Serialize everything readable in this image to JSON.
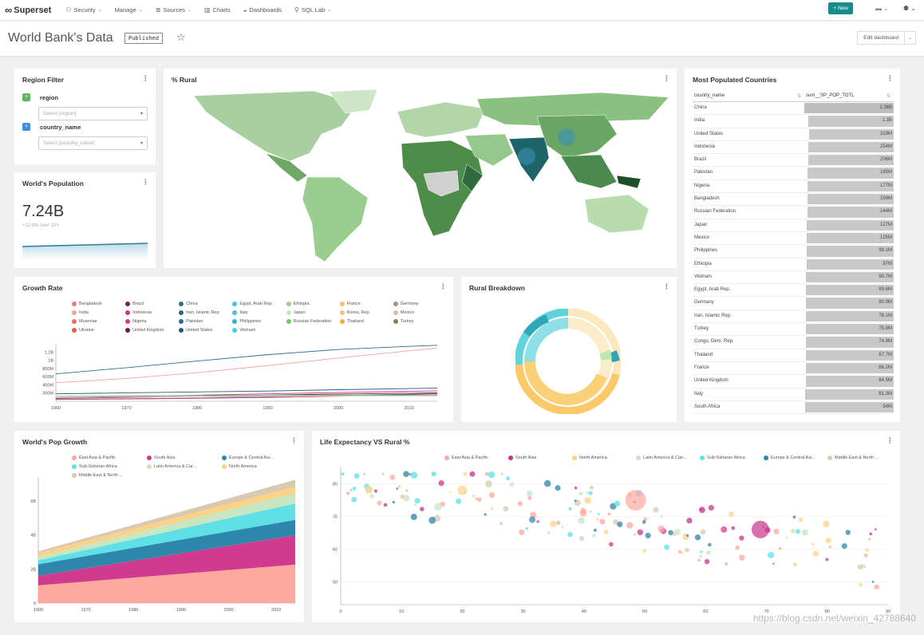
{
  "nav": {
    "brand": "Superset",
    "logo": "∞",
    "items": [
      {
        "label": "Security",
        "icon": "⚇",
        "caret": "⌄"
      },
      {
        "label": "Manage",
        "icon": "",
        "caret": "⌄"
      },
      {
        "label": "Sources",
        "icon": "≣",
        "caret": "⌄"
      },
      {
        "label": "Charts",
        "icon": "▥",
        "caret": ""
      },
      {
        "label": "Dashboards",
        "icon": "◒",
        "caret": ""
      },
      {
        "label": "SQL Lab",
        "icon": "⚲",
        "caret": "⌄"
      }
    ],
    "new_label": "+ New",
    "flag": "▬ ⌄",
    "user": "⚉ ⌄"
  },
  "header": {
    "title": "World Bank's Data",
    "badge": "Published",
    "star": "☆",
    "edit_label": "Edit dashboard",
    "edit_caret": "⌄"
  },
  "region_filter": {
    "title": "Region Filter",
    "menu": "⋮",
    "filters": [
      {
        "label": "region",
        "placeholder": "Select [region]",
        "check": "+"
      },
      {
        "label": "country_name",
        "placeholder": "Select [country_name]",
        "check": "+"
      }
    ],
    "arrow": "▾"
  },
  "worlds_population": {
    "title": "World's Population",
    "menu": "⋮",
    "value": "7.24B",
    "subtitle": "+12.9% over 10Y"
  },
  "rural_map": {
    "title": "% Rural",
    "menu": "⋮"
  },
  "most_populated": {
    "title": "Most Populated Countries",
    "menu": "⋮",
    "col1": "country_name",
    "col2": "sum__SP_POP_TOTL",
    "sort": "⇅",
    "rows": [
      {
        "name": "China",
        "value": "1.36B",
        "pct": 1.0
      },
      {
        "name": "India",
        "value": "1.3B",
        "pct": 0.955
      },
      {
        "name": "United States",
        "value": "319M",
        "pct": 0.95
      },
      {
        "name": "Indonesia",
        "value": "254M",
        "pct": 0.955
      },
      {
        "name": "Brazil",
        "value": "206M",
        "pct": 0.958
      },
      {
        "name": "Pakistan",
        "value": "185M",
        "pct": 0.96
      },
      {
        "name": "Nigeria",
        "value": "177M",
        "pct": 0.962
      },
      {
        "name": "Bangladesh",
        "value": "159M",
        "pct": 0.965
      },
      {
        "name": "Russian Federation",
        "value": "144M",
        "pct": 0.967
      },
      {
        "name": "Japan",
        "value": "127M",
        "pct": 0.97
      },
      {
        "name": "Mexico",
        "value": "125M",
        "pct": 0.972
      },
      {
        "name": "Philippines",
        "value": "99.1M",
        "pct": 0.975
      },
      {
        "name": "Ethiopia",
        "value": "97M",
        "pct": 0.976
      },
      {
        "name": "Vietnam",
        "value": "90.7M",
        "pct": 0.978
      },
      {
        "name": "Egypt, Arab Rep.",
        "value": "89.6M",
        "pct": 0.979
      },
      {
        "name": "Germany",
        "value": "80.9M",
        "pct": 0.98
      },
      {
        "name": "Iran, Islamic Rep.",
        "value": "78.1M",
        "pct": 0.981
      },
      {
        "name": "Turkey",
        "value": "75.9M",
        "pct": 0.982
      },
      {
        "name": "Congo, Dem. Rep.",
        "value": "74.9M",
        "pct": 0.983
      },
      {
        "name": "Thailand",
        "value": "67.7M",
        "pct": 0.984
      },
      {
        "name": "France",
        "value": "66.2M",
        "pct": 0.985
      },
      {
        "name": "United Kingdom",
        "value": "64.5M",
        "pct": 0.986
      },
      {
        "name": "Italy",
        "value": "61.3M",
        "pct": 0.987
      },
      {
        "name": "South Africa",
        "value": "54M",
        "pct": 0.988
      }
    ]
  },
  "growth_rate": {
    "title": "Growth Rate",
    "menu": "⋮",
    "legend": [
      {
        "name": "Bangladesh",
        "color": "#e9787a"
      },
      {
        "name": "Brazil",
        "color": "#7a1c4a"
      },
      {
        "name": "China",
        "color": "#2c6e8f"
      },
      {
        "name": "Egypt, Arab Rep.",
        "color": "#45c5d9"
      },
      {
        "name": "Ethiopia",
        "color": "#9bd18b"
      },
      {
        "name": "France",
        "color": "#f7c161"
      },
      {
        "name": "Germany",
        "color": "#a8937a"
      },
      {
        "name": "India",
        "color": "#f5a3a0"
      },
      {
        "name": "Indonesia",
        "color": "#c7358a"
      },
      {
        "name": "Iran, Islamic Rep.",
        "color": "#33607a"
      },
      {
        "name": "Italy",
        "color": "#4ec0d6"
      },
      {
        "name": "Japan",
        "color": "#c9e5b6"
      },
      {
        "name": "Korea, Rep.",
        "color": "#f3c36c"
      },
      {
        "name": "Mexico",
        "color": "#cfc2a6"
      },
      {
        "name": "Myanmar",
        "color": "#ee6a5f"
      },
      {
        "name": "Nigeria",
        "color": "#d33a8e"
      },
      {
        "name": "Pakistan",
        "color": "#2f6b8c"
      },
      {
        "name": "Philippines",
        "color": "#2cb3c7"
      },
      {
        "name": "Russian Federation",
        "color": "#74c26a"
      },
      {
        "name": "Thailand",
        "color": "#f0a93b"
      },
      {
        "name": "Turkey",
        "color": "#8c7b60"
      },
      {
        "name": "Ukraine",
        "color": "#e45a5a"
      },
      {
        "name": "United Kingdom",
        "color": "#6b1a3c"
      },
      {
        "name": "United States",
        "color": "#245c75"
      },
      {
        "name": "Vietnam",
        "color": "#3fd0dc"
      }
    ],
    "y_ticks": [
      "1.2B",
      "1B",
      "800M",
      "600M",
      "400M",
      "200M"
    ],
    "x_ticks": [
      "1960",
      "1970",
      "1980",
      "1990",
      "2000",
      "2010"
    ]
  },
  "rural_breakdown": {
    "title": "Rural Breakdown",
    "menu": "⋮"
  },
  "pop_growth": {
    "title": "World's Pop Growth",
    "menu": "⋮",
    "legend": [
      {
        "name": "East Asia & Pacific",
        "color": "#fca89e"
      },
      {
        "name": "South Asia",
        "color": "#d03b8f"
      },
      {
        "name": "Europe & Central Asi...",
        "color": "#2e86ab"
      },
      {
        "name": "Sub-Saharan Africa",
        "color": "#5ee0e6"
      },
      {
        "name": "Latin America & Car...",
        "color": "#c8e6c0"
      },
      {
        "name": "North America",
        "color": "#fdd383"
      },
      {
        "name": "Middle East & North ...",
        "color": "#d8c9b0"
      }
    ],
    "y_ticks": [
      "6B",
      "4B",
      "2B",
      "0"
    ],
    "x_ticks": [
      "1960",
      "1970",
      "1980",
      "1990",
      "2000",
      "2010"
    ]
  },
  "life_expectancy": {
    "title": "Life Expectancy VS Rural %",
    "menu": "⋮",
    "legend": [
      {
        "name": "East Asia & Pacific",
        "color": "#fca89e"
      },
      {
        "name": "South Asia",
        "color": "#c7358a"
      },
      {
        "name": "North America",
        "color": "#fdd383"
      },
      {
        "name": "Latin America & Cari...",
        "color": "#c8e6c0"
      },
      {
        "name": "Sub-Saharan Africa",
        "color": "#5ee0e6"
      },
      {
        "name": "Europe & Central Asi...",
        "color": "#2e86ab"
      },
      {
        "name": "Middle East & North ...",
        "color": "#d8c9b0"
      }
    ],
    "y_ticks": [
      "80",
      "70",
      "60",
      "50"
    ],
    "x_ticks": [
      "0",
      "10",
      "20",
      "30",
      "40",
      "50",
      "60",
      "70",
      "80",
      "90"
    ]
  },
  "watermark": "https://blog.csdn.net/weixin_42788640",
  "chart_data": [
    {
      "type": "line",
      "title": "Growth Rate",
      "x": [
        1960,
        1970,
        1980,
        1990,
        2000,
        2010,
        2014
      ],
      "ylim": [
        0,
        1400000000
      ],
      "series": [
        {
          "name": "China",
          "values": [
            667000000,
            818000000,
            981000000,
            1135000000,
            1263000000,
            1338000000,
            1364000000
          ]
        },
        {
          "name": "India",
          "values": [
            450000000,
            555000000,
            697000000,
            870000000,
            1053000000,
            1231000000,
            1295000000
          ]
        },
        {
          "name": "United States",
          "values": [
            181000000,
            205000000,
            227000000,
            250000000,
            282000000,
            309000000,
            319000000
          ]
        },
        {
          "name": "Indonesia",
          "values": [
            88000000,
            115000000,
            148000000,
            181000000,
            212000000,
            242000000,
            254000000
          ]
        },
        {
          "name": "Brazil",
          "values": [
            72000000,
            95000000,
            121000000,
            150000000,
            175000000,
            196000000,
            206000000
          ]
        },
        {
          "name": "Pakistan",
          "values": [
            45000000,
            59000000,
            78000000,
            107000000,
            138000000,
            170000000,
            185000000
          ]
        },
        {
          "name": "Nigeria",
          "values": [
            45000000,
            56000000,
            73000000,
            95000000,
            123000000,
            159000000,
            177000000
          ]
        },
        {
          "name": "Russian Federation",
          "values": [
            120000000,
            130000000,
            139000000,
            148000000,
            147000000,
            143000000,
            144000000
          ]
        },
        {
          "name": "Japan",
          "values": [
            93000000,
            104000000,
            117000000,
            124000000,
            127000000,
            128000000,
            127000000
          ]
        }
      ]
    },
    {
      "type": "area",
      "title": "World's Pop Growth",
      "x": [
        1960,
        2014
      ],
      "ylim": [
        0,
        7400000000
      ],
      "series": [
        {
          "name": "East Asia & Pacific",
          "values": [
            1040000000,
            2260000000
          ]
        },
        {
          "name": "South Asia",
          "values": [
            570000000,
            1720000000
          ]
        },
        {
          "name": "Europe & Central Asia",
          "values": [
            670000000,
            900000000
          ]
        },
        {
          "name": "Sub-Saharan Africa",
          "values": [
            230000000,
            970000000
          ]
        },
        {
          "name": "Latin America & Caribbean",
          "values": [
            220000000,
            620000000
          ]
        },
        {
          "name": "North America",
          "values": [
            200000000,
            360000000
          ]
        },
        {
          "name": "Middle East & North Africa",
          "values": [
            110000000,
            410000000
          ]
        }
      ]
    }
  ]
}
